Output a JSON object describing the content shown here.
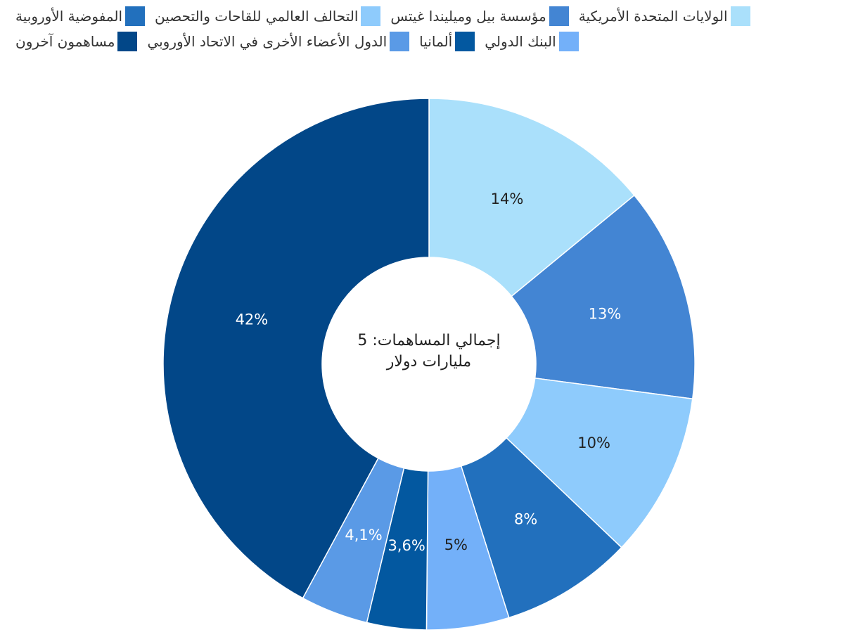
{
  "chart_data": {
    "type": "pie",
    "donut": true,
    "center_text": "إجمالي المساهمات: 5 مليارات دولار",
    "legend_position": "top",
    "slices": [
      {
        "name": "الولايات المتحدة الأمريكية",
        "value": 14,
        "label": "14%",
        "color": "#aae0fb",
        "label_color": "#222222"
      },
      {
        "name": "مؤسسة بيل وميليندا غيتس",
        "value": 13,
        "label": "13%",
        "color": "#4385d3",
        "label_color": "#ffffff"
      },
      {
        "name": "التحالف العالمي للقاحات والتحصين",
        "value": 10,
        "label": "10%",
        "color": "#8ecbfc",
        "label_color": "#222222"
      },
      {
        "name": "المفوضية الأوروبية",
        "value": 8,
        "label": "8%",
        "color": "#2270bd",
        "label_color": "#ffffff"
      },
      {
        "name": "البنك الدولي",
        "value": 5,
        "label": "5%",
        "color": "#73b0f9",
        "label_color": "#222222"
      },
      {
        "name": "ألمانيا",
        "value": 3.6,
        "label": "3,6%",
        "color": "#0358a0",
        "label_color": "#ffffff"
      },
      {
        "name": "الدول الأعضاء الأخرى في الاتحاد الأوروبي",
        "value": 4.1,
        "label": "4,1%",
        "color": "#5a9ae6",
        "label_color": "#ffffff"
      },
      {
        "name": "مساهمون آخرون",
        "value": 42,
        "label": "42%",
        "color": "#024788",
        "label_color": "#ffffff"
      }
    ]
  }
}
